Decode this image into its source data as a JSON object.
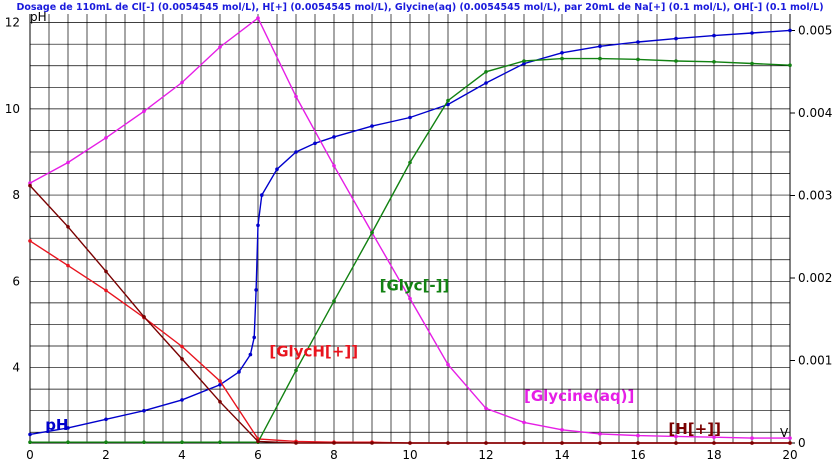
{
  "chart_data": {
    "type": "line",
    "title": "Dosage de 110mL de Cl[-] (0.0054545 mol/L), H[+] (0.0054545 mol/L), Glycine(aq) (0.0054545 mol/L),  par 20mL  de Na[+] (0.1 mol/L), OH[-] (0.1 mol/L)",
    "ylabel": "pH",
    "xlabel": "V",
    "xlim": [
      0,
      20
    ],
    "ylim": [
      2.25,
      12.2
    ],
    "y2lim": [
      0,
      0.0052
    ],
    "xticks": [
      "0",
      "2",
      "4",
      "6",
      "8",
      "10",
      "12",
      "14",
      "16",
      "18",
      "20"
    ],
    "yticks": [
      "4",
      "6",
      "8",
      "10",
      "12"
    ],
    "y2ticks": [
      "0",
      "0.001",
      "0.002",
      "0.003",
      "0.004",
      "0.005"
    ],
    "grid": true,
    "series": [
      {
        "name": "pH",
        "axis": "left",
        "color": "#0000cc",
        "x": [
          0,
          1,
          2,
          3,
          4,
          5,
          5.5,
          5.8,
          5.9,
          5.95,
          6.0,
          6.1,
          6.5,
          7,
          7.5,
          8,
          9,
          10,
          11,
          12,
          13,
          14,
          15,
          16,
          17,
          18,
          19,
          20
        ],
        "y": [
          2.45,
          2.6,
          2.8,
          3.0,
          3.25,
          3.6,
          3.9,
          4.3,
          4.7,
          5.8,
          7.3,
          8.0,
          8.6,
          9.0,
          9.2,
          9.35,
          9.6,
          9.8,
          10.1,
          10.6,
          11.05,
          11.3,
          11.45,
          11.55,
          11.63,
          11.7,
          11.76,
          11.82
        ]
      },
      {
        "name": "[GlycH[+]]",
        "axis": "right",
        "color": "#e8141e",
        "x": [
          0,
          1,
          2,
          3,
          4,
          5,
          6,
          7,
          8,
          9,
          10,
          11,
          12,
          13,
          14,
          15,
          16,
          17,
          18,
          19,
          20
        ],
        "y": [
          0.00245,
          0.00215,
          0.00185,
          0.00152,
          0.00117,
          0.00075,
          5e-05,
          2e-05,
          1e-05,
          1e-05,
          0,
          0,
          0,
          0,
          0,
          0,
          0,
          0,
          0,
          0,
          0
        ]
      },
      {
        "name": "[Glycine(aq)]",
        "axis": "right",
        "color": "#e61ee6",
        "x": [
          0,
          1,
          2,
          3,
          4,
          5,
          6,
          7,
          8,
          9,
          10,
          11,
          12,
          13,
          14,
          15,
          16,
          17,
          18,
          19,
          20
        ],
        "y": [
          0.00315,
          0.0034,
          0.0037,
          0.00402,
          0.00437,
          0.0048,
          0.00515,
          0.0042,
          0.00336,
          0.00255,
          0.00175,
          0.00095,
          0.00042,
          0.00025,
          0.00016,
          0.00011,
          9e-05,
          8e-05,
          7e-05,
          6e-05,
          6e-05
        ]
      },
      {
        "name": "[Glyc[-]]",
        "axis": "right",
        "color": "#128212",
        "x": [
          0,
          1,
          2,
          3,
          4,
          5,
          6,
          7,
          8,
          9,
          10,
          11,
          12,
          13,
          14,
          15,
          16,
          17,
          18,
          19,
          20
        ],
        "y": [
          1e-05,
          1e-05,
          1e-05,
          1e-05,
          1e-05,
          1e-05,
          1e-05,
          0.00088,
          0.00172,
          0.00255,
          0.0034,
          0.00415,
          0.0045,
          0.00463,
          0.00466,
          0.00466,
          0.00465,
          0.00463,
          0.00462,
          0.0046,
          0.00458
        ]
      },
      {
        "name": "[H[+]]",
        "axis": "right",
        "color": "#7a0000",
        "x": [
          0,
          1,
          2,
          3,
          4,
          5,
          6,
          7,
          8,
          9,
          10,
          11,
          12,
          13,
          14,
          15,
          16,
          17,
          18,
          19,
          20
        ],
        "y": [
          0.00312,
          0.00262,
          0.00208,
          0.00153,
          0.00102,
          0.0005,
          2e-05,
          0,
          0,
          0,
          0,
          0,
          0,
          0,
          0,
          0,
          0,
          0,
          0,
          0,
          0
        ]
      }
    ],
    "labels": [
      {
        "text": "pH",
        "color": "#0000cc",
        "x": 0.4,
        "axis": "left",
        "y": 2.55
      },
      {
        "text": "[GlycH[+]]",
        "color": "#e8141e",
        "x": 6.3,
        "axis": "right",
        "y": 0.00105
      },
      {
        "text": "[Glyc[-]]",
        "color": "#128212",
        "x": 9.2,
        "axis": "right",
        "y": 0.00185
      },
      {
        "text": "[Glycine(aq)]",
        "color": "#e61ee6",
        "x": 13.0,
        "axis": "right",
        "y": 0.00051
      },
      {
        "text": "[H[+]]",
        "color": "#7a0000",
        "x": 16.8,
        "axis": "right",
        "y": 0.00011
      }
    ]
  }
}
